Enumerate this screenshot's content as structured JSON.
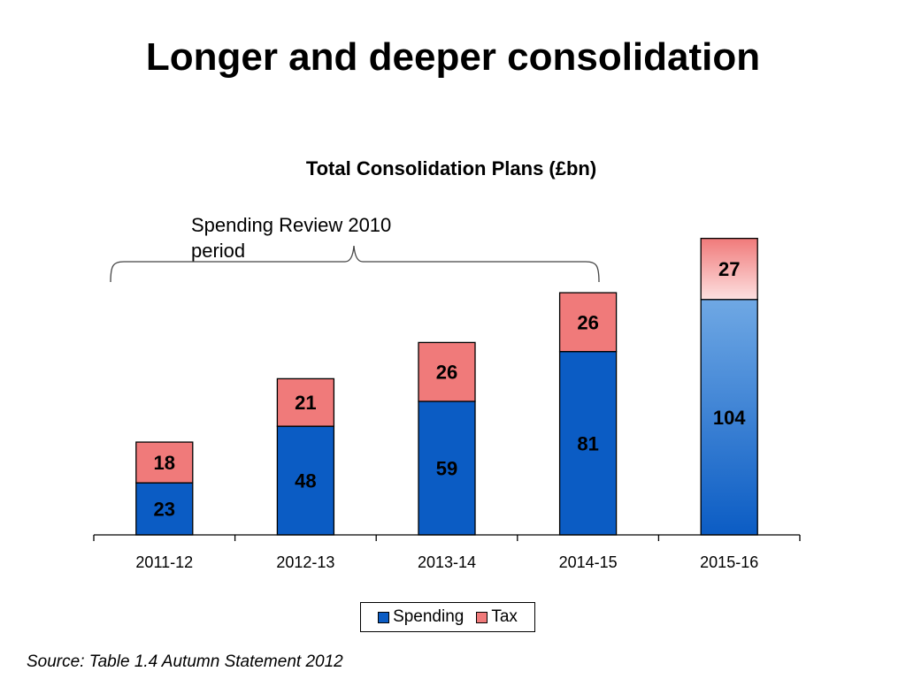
{
  "slide_title": "Longer and deeper consolidation",
  "annotation": "Spending Review 2010\nperiod",
  "source": "Source: Table 1.4 Autumn Statement 2012",
  "chart_data": {
    "type": "bar",
    "stacked": true,
    "title": "Total Consolidation Plans (£bn)",
    "categories": [
      "2011-12",
      "2012-13",
      "2013-14",
      "2014-15",
      "2015-16"
    ],
    "series": [
      {
        "name": "Spending",
        "values": [
          23,
          48,
          59,
          81,
          104
        ],
        "color": "#0b5cc4"
      },
      {
        "name": "Tax",
        "values": [
          18,
          21,
          26,
          26,
          27
        ],
        "color": "#f07a7a"
      }
    ],
    "ylim": [
      0,
      135
    ],
    "grid": false,
    "legend_position": "bottom",
    "colors": {
      "highlight_spending": "#6fa8e4",
      "highlight_tax": "#fde0e0"
    }
  }
}
